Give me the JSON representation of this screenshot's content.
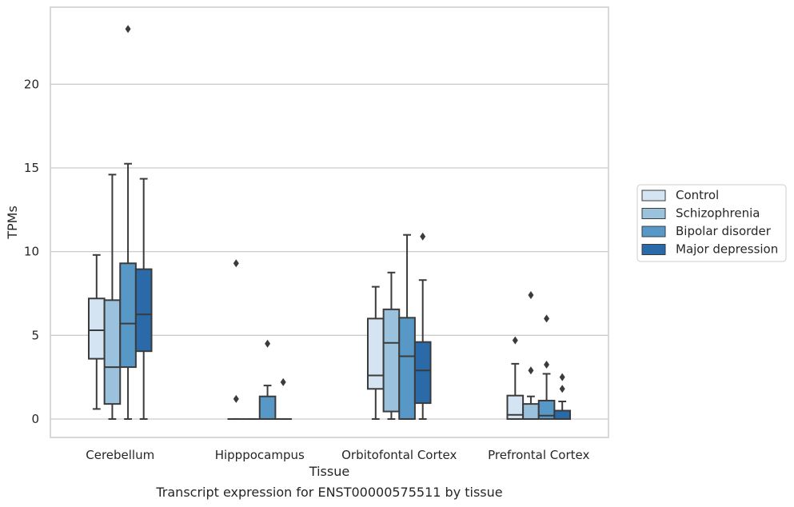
{
  "caption": "Transcript expression for ENST00000575511 by tissue",
  "chart_data": {
    "type": "box",
    "xlabel": "Tissue",
    "ylabel": "TPMs",
    "ylim": [
      -1.1,
      24.6
    ],
    "yticks": [
      0,
      5,
      10,
      15,
      20
    ],
    "grid": "horizontal",
    "legend_position": "right",
    "categories": [
      "Cerebellum",
      "Hipppocampus",
      "Orbitofontal Cortex",
      "Prefrontal Cortex"
    ],
    "series": [
      {
        "name": "Control",
        "color": "#d4e4f3",
        "boxes": [
          {
            "whislo": 0.6,
            "q1": 3.6,
            "med": 5.3,
            "q3": 7.2,
            "whishi": 9.8,
            "fliers": []
          },
          {
            "whislo": 0,
            "q1": 0,
            "med": 0,
            "q3": 0,
            "whishi": 0,
            "fliers": [
              1.2,
              9.3
            ]
          },
          {
            "whislo": 0,
            "q1": 1.8,
            "med": 2.6,
            "q3": 6.0,
            "whishi": 7.9,
            "fliers": []
          },
          {
            "whislo": 0,
            "q1": 0,
            "med": 0.25,
            "q3": 1.4,
            "whishi": 3.3,
            "fliers": [
              4.7
            ]
          }
        ]
      },
      {
        "name": "Schizophrenia",
        "color": "#9ac2dc",
        "boxes": [
          {
            "whislo": 0,
            "q1": 0.9,
            "med": 3.1,
            "q3": 7.1,
            "whishi": 14.6,
            "fliers": []
          },
          {
            "whislo": 0,
            "q1": 0,
            "med": 0,
            "q3": 0,
            "whishi": 0,
            "fliers": []
          },
          {
            "whislo": 0,
            "q1": 0.45,
            "med": 4.55,
            "q3": 6.55,
            "whishi": 8.75,
            "fliers": []
          },
          {
            "whislo": 0,
            "q1": 0,
            "med": 0,
            "q3": 0.9,
            "whishi": 1.35,
            "fliers": [
              2.9,
              7.4
            ]
          }
        ]
      },
      {
        "name": "Bipolar disorder",
        "color": "#5898c6",
        "boxes": [
          {
            "whislo": 0,
            "q1": 3.1,
            "med": 5.7,
            "q3": 9.3,
            "whishi": 15.25,
            "fliers": [
              23.3
            ]
          },
          {
            "whislo": 0,
            "q1": 0,
            "med": 0,
            "q3": 1.35,
            "whishi": 2.0,
            "fliers": [
              4.5
            ]
          },
          {
            "whislo": 0,
            "q1": 0,
            "med": 3.75,
            "q3": 6.05,
            "whishi": 11.0,
            "fliers": []
          },
          {
            "whislo": 0,
            "q1": 0,
            "med": 0.2,
            "q3": 1.1,
            "whishi": 2.7,
            "fliers": [
              3.25,
              6.0
            ]
          }
        ]
      },
      {
        "name": "Major depression",
        "color": "#2b6aa9",
        "boxes": [
          {
            "whislo": 0,
            "q1": 4.05,
            "med": 6.25,
            "q3": 8.95,
            "whishi": 14.35,
            "fliers": []
          },
          {
            "whislo": 0,
            "q1": 0,
            "med": 0,
            "q3": 0,
            "whishi": 0,
            "fliers": [
              2.2
            ]
          },
          {
            "whislo": 0,
            "q1": 0.95,
            "med": 2.9,
            "q3": 4.6,
            "whishi": 8.3,
            "fliers": [
              10.9
            ]
          },
          {
            "whislo": 0,
            "q1": 0,
            "med": 0,
            "q3": 0.5,
            "whishi": 1.05,
            "fliers": [
              1.8,
              2.5
            ]
          }
        ]
      }
    ]
  }
}
